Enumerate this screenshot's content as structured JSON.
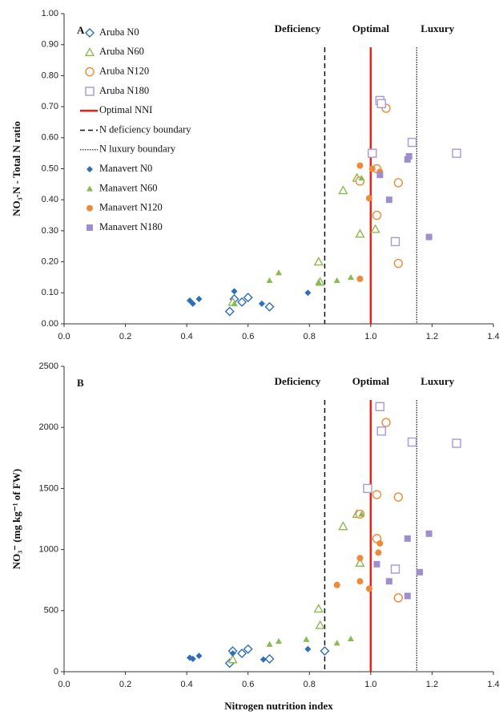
{
  "chart_data": [
    {
      "type": "scatter",
      "label": "A",
      "ylabel": "NO₃-N - Total N ratio",
      "xlim": [
        0,
        1.4
      ],
      "ylim": [
        0,
        1.0
      ],
      "xticks": [
        {
          "value": 0,
          "label": "0.0"
        },
        {
          "value": 0.2,
          "label": "0.2"
        },
        {
          "value": 0.4,
          "label": "0.4"
        },
        {
          "value": 0.6,
          "label": "0.6"
        },
        {
          "value": 0.8,
          "label": "0.8"
        },
        {
          "value": 1.0,
          "label": "1.0"
        },
        {
          "value": 1.2,
          "label": "1.2"
        },
        {
          "value": 1.4,
          "label": "1.4"
        }
      ],
      "yticks": [
        {
          "value": 0,
          "label": "0.00"
        },
        {
          "value": 0.1,
          "label": "0.10"
        },
        {
          "value": 0.2,
          "label": "0.20"
        },
        {
          "value": 0.3,
          "label": "0.30"
        },
        {
          "value": 0.4,
          "label": "0.40"
        },
        {
          "value": 0.5,
          "label": "0.50"
        },
        {
          "value": 0.6,
          "label": "0.60"
        },
        {
          "value": 0.7,
          "label": "0.70"
        },
        {
          "value": 0.8,
          "label": "0.80"
        },
        {
          "value": 0.9,
          "label": "0.90"
        },
        {
          "value": 1.0,
          "label": "1.00"
        }
      ],
      "legend": true,
      "annotations": [
        {
          "text": "Deficiency",
          "color": "#3a78c0"
        },
        {
          "text": "Optimal",
          "color": "#e3261b"
        },
        {
          "text": "Luxury",
          "color": "#6fb05a"
        }
      ],
      "series": [
        {
          "name": "Aruba N0",
          "color": "#2f6fb8",
          "marker": "diamond",
          "filled": false,
          "x": [
            0.54,
            0.555,
            0.58,
            0.6,
            0.67
          ],
          "values": [
            0.04,
            0.08,
            0.07,
            0.085,
            0.055
          ]
        },
        {
          "name": "Aruba N60",
          "color": "#8cba52",
          "marker": "triangle",
          "filled": false,
          "x": [
            0.55,
            0.83,
            0.835,
            0.91,
            0.955,
            0.965,
            1.015
          ],
          "values": [
            0.07,
            0.2,
            0.135,
            0.43,
            0.47,
            0.29,
            0.305
          ]
        },
        {
          "name": "Aruba N120",
          "color": "#ee8a3a",
          "marker": "circle",
          "filled": false,
          "x": [
            0.965,
            1.02,
            1.02,
            1.05,
            1.09,
            1.09
          ],
          "values": [
            0.46,
            0.5,
            0.35,
            0.695,
            0.455,
            0.195
          ]
        },
        {
          "name": "Aruba N180",
          "color": "#a898d6",
          "marker": "square",
          "filled": false,
          "x": [
            1.005,
            1.03,
            1.035,
            1.08,
            1.135,
            1.28
          ],
          "values": [
            0.55,
            0.72,
            0.71,
            0.265,
            0.585,
            0.55
          ]
        },
        {
          "name": "Manavert N0",
          "color": "#2f6fb8",
          "marker": "diamond",
          "filled": true,
          "x": [
            0.41,
            0.42,
            0.44,
            0.555,
            0.645,
            0.795
          ],
          "values": [
            0.075,
            0.065,
            0.08,
            0.105,
            0.065,
            0.1
          ]
        },
        {
          "name": "Manavert N60",
          "color": "#8cba52",
          "marker": "triangle",
          "filled": true,
          "x": [
            0.555,
            0.67,
            0.7,
            0.83,
            0.89,
            0.935,
            0.97
          ],
          "values": [
            0.065,
            0.14,
            0.165,
            0.135,
            0.14,
            0.15,
            0.47
          ]
        },
        {
          "name": "Manavert N120",
          "color": "#ee8a3a",
          "marker": "circle",
          "filled": true,
          "x": [
            0.965,
            0.965,
            0.995,
            1.005,
            1.03
          ],
          "values": [
            0.51,
            0.145,
            0.405,
            0.5,
            0.49
          ]
        },
        {
          "name": "Manavert N180",
          "color": "#9e8fcc",
          "marker": "square",
          "filled": true,
          "x": [
            1.03,
            1.06,
            1.12,
            1.125,
            1.19
          ],
          "values": [
            0.48,
            0.4,
            0.53,
            0.54,
            0.28
          ]
        }
      ],
      "reference_lines": [
        {
          "name": "Optimal NNI",
          "x": 1.0,
          "color": "#e3261b",
          "style": "solid"
        },
        {
          "name": "N deficiency boundary",
          "x": 0.85,
          "color": "#111111",
          "style": "dashed"
        },
        {
          "name": "N luxury boundary",
          "x": 1.15,
          "color": "#111111",
          "style": "dotted"
        }
      ]
    },
    {
      "type": "scatter",
      "label": "B",
      "ylabel": "NO₃⁻ (mg kg⁻¹ of FW)",
      "xlabel": "Nitrogen nutrition index",
      "xlim": [
        0,
        1.4
      ],
      "ylim": [
        0,
        2500
      ],
      "xticks": [
        {
          "value": 0,
          "label": "0.0"
        },
        {
          "value": 0.2,
          "label": "0.2"
        },
        {
          "value": 0.4,
          "label": "0.4"
        },
        {
          "value": 0.6,
          "label": "0.6"
        },
        {
          "value": 0.8,
          "label": "0.8"
        },
        {
          "value": 1.0,
          "label": "1.0"
        },
        {
          "value": 1.2,
          "label": "1.2"
        },
        {
          "value": 1.4,
          "label": "1.4"
        }
      ],
      "yticks": [
        0,
        500,
        1000,
        1500,
        2000,
        2500
      ],
      "legend": false,
      "annotations": [
        {
          "text": "Deficiency",
          "color": "#3a78c0"
        },
        {
          "text": "Optimal",
          "color": "#e3261b"
        },
        {
          "text": "Luxury",
          "color": "#6fb05a"
        }
      ],
      "series": [
        {
          "color": "#2f6fb8",
          "marker": "diamond",
          "filled": false,
          "x": [
            0.54,
            0.55,
            0.58,
            0.6,
            0.67,
            0.85
          ],
          "values": [
            70,
            170,
            150,
            185,
            105,
            170
          ]
        },
        {
          "color": "#8cba52",
          "marker": "triangle",
          "filled": false,
          "x": [
            0.55,
            0.83,
            0.835,
            0.91,
            0.955,
            0.965
          ],
          "values": [
            100,
            515,
            380,
            1190,
            1290,
            890
          ]
        },
        {
          "color": "#ee8a3a",
          "marker": "circle",
          "filled": false,
          "x": [
            0.965,
            1.02,
            1.02,
            1.05,
            1.09,
            1.09
          ],
          "values": [
            1290,
            1450,
            1090,
            2040,
            1430,
            605
          ]
        },
        {
          "color": "#a898d6",
          "marker": "square",
          "filled": false,
          "x": [
            0.99,
            1.03,
            1.035,
            1.08,
            1.135,
            1.28
          ],
          "values": [
            1500,
            2170,
            1970,
            840,
            1880,
            1870
          ]
        },
        {
          "color": "#2f6fb8",
          "marker": "diamond",
          "filled": true,
          "x": [
            0.41,
            0.42,
            0.44,
            0.55,
            0.65,
            0.795
          ],
          "values": [
            115,
            105,
            130,
            150,
            100,
            185
          ]
        },
        {
          "color": "#8cba52",
          "marker": "triangle",
          "filled": true,
          "x": [
            0.67,
            0.7,
            0.79,
            0.89,
            0.935,
            0.97
          ],
          "values": [
            225,
            250,
            265,
            235,
            270,
            1290
          ]
        },
        {
          "color": "#ee8a3a",
          "marker": "circle",
          "filled": true,
          "x": [
            0.89,
            0.965,
            0.965,
            0.995,
            1.025,
            1.03
          ],
          "values": [
            710,
            930,
            740,
            680,
            975,
            1050
          ]
        },
        {
          "color": "#9e8fcc",
          "marker": "square",
          "filled": true,
          "x": [
            1.02,
            1.06,
            1.12,
            1.12,
            1.16,
            1.19
          ],
          "values": [
            880,
            740,
            1090,
            620,
            815,
            1130
          ]
        }
      ],
      "reference_lines": [
        {
          "x": 1.0,
          "color": "#e3261b",
          "style": "solid"
        },
        {
          "x": 0.85,
          "color": "#111111",
          "style": "dashed"
        },
        {
          "x": 1.15,
          "color": "#111111",
          "style": "dotted"
        }
      ]
    }
  ]
}
